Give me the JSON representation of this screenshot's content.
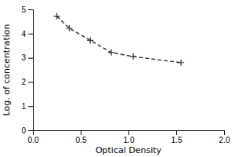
{
  "chart_data": {
    "type": "line",
    "xlabel": "Optical Density",
    "ylabel": "Log. of concentration",
    "x": [
      0.25,
      0.38,
      0.6,
      0.82,
      1.05,
      1.55
    ],
    "values": [
      4.72,
      4.22,
      3.72,
      3.22,
      3.05,
      2.8
    ],
    "xlim": [
      0,
      2
    ],
    "ylim": [
      0,
      5
    ],
    "xticks": [
      {
        "value": 0,
        "label": "0.0"
      },
      0.5,
      {
        "value": 1,
        "label": "1.0"
      },
      1.5,
      {
        "value": 2,
        "label": "2.0"
      }
    ],
    "yticks": [
      0,
      1,
      2,
      3,
      4,
      5
    ],
    "color": "#333333",
    "marker": "plus",
    "line_style": "dashed"
  }
}
